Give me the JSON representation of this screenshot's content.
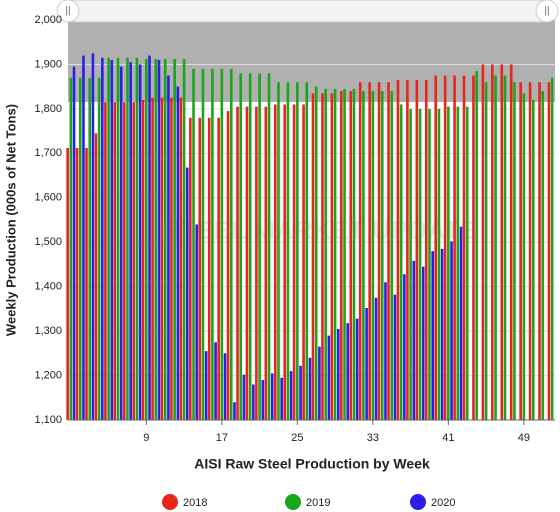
{
  "chart_data": {
    "type": "bar",
    "title": "AISI Raw Steel Production by Week",
    "y_label": "Weekly Production (000s of Net Tons)",
    "watermark": "STEEL MARKET UPDATE",
    "x": [
      1,
      2,
      3,
      4,
      5,
      6,
      7,
      8,
      9,
      10,
      11,
      12,
      13,
      14,
      15,
      16,
      17,
      18,
      19,
      20,
      21,
      22,
      23,
      24,
      25,
      26,
      27,
      28,
      29,
      30,
      31,
      32,
      33,
      34,
      35,
      36,
      37,
      38,
      39,
      40,
      41,
      42,
      43,
      44,
      45,
      46,
      47,
      48,
      49,
      50,
      51,
      52
    ],
    "xlim": [
      0.7,
      52.3
    ],
    "xticks": [
      9,
      17,
      25,
      33,
      41,
      49
    ],
    "ylim": [
      1100,
      2000
    ],
    "yticks": [
      {
        "value": 1100,
        "label": "1,100"
      },
      {
        "value": 1200,
        "label": "1,200"
      },
      {
        "value": 1300,
        "label": "1,300"
      },
      {
        "value": 1400,
        "label": "1,400"
      },
      {
        "value": 1500,
        "label": "1,500"
      },
      {
        "value": 1600,
        "label": "1,600"
      },
      {
        "value": 1700,
        "label": "1,700"
      },
      {
        "value": 1800,
        "label": "1,800"
      },
      {
        "value": 1900,
        "label": "1,900"
      },
      {
        "value": 2000,
        "label": "2,000"
      }
    ],
    "grid": true,
    "legend": "bottom",
    "series": [
      {
        "name": "2018",
        "color": "#e8241b",
        "values": [
          1712,
          1712,
          1712,
          1745,
          1815,
          1815,
          1815,
          1815,
          1820,
          1825,
          1825,
          1825,
          1825,
          1780,
          1780,
          1780,
          1780,
          1795,
          1805,
          1805,
          1805,
          1805,
          1810,
          1810,
          1810,
          1810,
          1835,
          1835,
          1835,
          1840,
          1840,
          1860,
          1860,
          1860,
          1860,
          1865,
          1865,
          1865,
          1865,
          1875,
          1875,
          1875,
          1875,
          1875,
          1900,
          1900,
          1900,
          1900,
          1860,
          1860,
          1860,
          1860
        ]
      },
      {
        "name": "2019",
        "color": "#1aa51a",
        "values": [
          1870,
          1870,
          1870,
          1870,
          1915,
          1915,
          1915,
          1915,
          1912,
          1912,
          1912,
          1912,
          1912,
          1890,
          1890,
          1890,
          1890,
          1890,
          1880,
          1880,
          1880,
          1880,
          1860,
          1860,
          1860,
          1860,
          1850,
          1845,
          1845,
          1845,
          1845,
          1840,
          1840,
          1840,
          1840,
          1810,
          1800,
          1800,
          1800,
          1800,
          1805,
          1805,
          1805,
          1885,
          1860,
          1875,
          1875,
          1860,
          1835,
          1820,
          1840,
          1870
        ]
      },
      {
        "name": "2020",
        "color": "#2a1ee8",
        "values": [
          1895,
          1920,
          1925,
          1915,
          1910,
          1895,
          1905,
          1900,
          1920,
          1910,
          1875,
          1850,
          1668,
          1540,
          1255,
          1275,
          1250,
          1140,
          1202,
          1180,
          1190,
          1205,
          1195,
          1210,
          1222,
          1240,
          1265,
          1290,
          1305,
          1318,
          1328,
          1352,
          1375,
          1410,
          1382,
          1428,
          1458,
          1445,
          1480,
          1485,
          1502,
          1535,
          null,
          null,
          null,
          null,
          null,
          null,
          null,
          null,
          null,
          null
        ]
      }
    ]
  }
}
